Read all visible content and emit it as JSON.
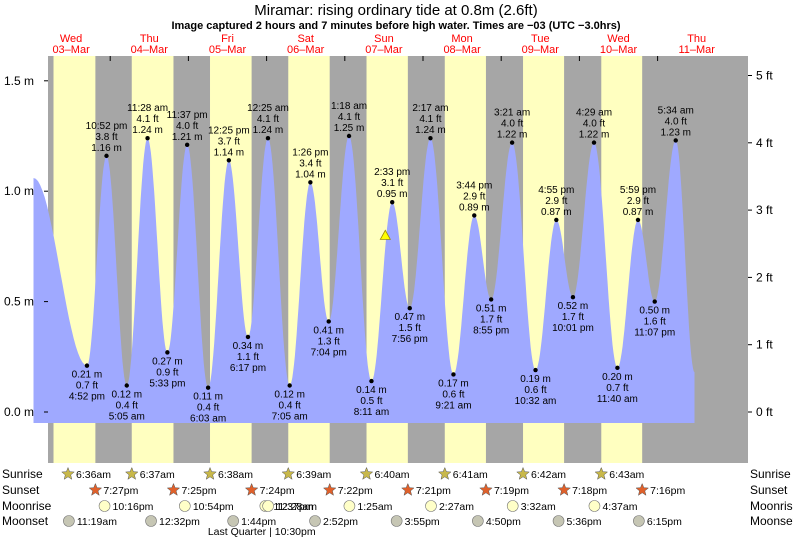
{
  "title": "Miramar: rising  ordinary tide at 0.8m (2.6ft)",
  "subtitle": "Image captured 2 hours and 7 minutes before high water. Times are −03 (UTC −3.0hrs)",
  "colors": {
    "day": "#ffffc0",
    "night": "#a6a6a6",
    "water": "#9fa9ff",
    "day_label": "#ff0000",
    "point": "#000000",
    "now_marker": "#ffff00"
  },
  "chart_data": {
    "type": "area",
    "title": "Miramar: rising  ordinary tide at 0.8m (2.6ft)",
    "xlabel": "",
    "ylabel_left": "m",
    "ylabel_right": "ft",
    "ylim": [
      -0.23,
      1.62
    ],
    "y_ticks_m": [
      "1.5 m",
      "1.0 m",
      "0.5 m",
      "0.0 m"
    ],
    "y_ticks_m_values": [
      1.5,
      1.0,
      0.5,
      0.0
    ],
    "y_ticks_ft": [
      "5 ft",
      "4 ft",
      "3 ft",
      "2 ft",
      "1 ft",
      "0 ft"
    ],
    "y_ticks_ft_values": [
      5,
      4,
      3,
      2,
      1,
      0
    ],
    "x_start": "2021-03-03T00:00",
    "x_end": "2021-03-11T23:59",
    "curve_start": {
      "t": "2021-03-03T00:28",
      "m": 1.06
    },
    "curve_end": {
      "t": "2021-03-11T11:20",
      "m": 0.18
    },
    "days": [
      {
        "day": "Wed",
        "date": "03–Mar",
        "sunrise": "6:36am",
        "sunset": "7:27pm",
        "moonrise": "10:16pm",
        "moonset": "11:19am"
      },
      {
        "day": "Thu",
        "date": "04–Mar",
        "sunrise": "6:37am",
        "sunset": "7:25pm",
        "moonrise": "10:54pm",
        "moonset": "12:32pm"
      },
      {
        "day": "Fri",
        "date": "05–Mar",
        "sunrise": "6:38am",
        "sunset": "7:24pm",
        "moonrise": "11:37pm",
        "moonset": "1:44pm"
      },
      {
        "day": "Sat",
        "date": "06–Mar",
        "sunrise": "6:39am",
        "sunset": "7:22pm",
        "moonrise": "12:28am",
        "moonset": "2:52pm"
      },
      {
        "day": "Sun",
        "date": "07–Mar",
        "sunrise": "6:40am",
        "sunset": "7:21pm",
        "moonrise": "1:25am",
        "moonset": "3:55pm"
      },
      {
        "day": "Mon",
        "date": "08–Mar",
        "sunrise": "6:41am",
        "sunset": "7:19pm",
        "moonrise": "2:27am",
        "moonset": "4:50pm"
      },
      {
        "day": "Tue",
        "date": "09–Mar",
        "sunrise": "6:42am",
        "sunset": "7:18pm",
        "moonrise": "3:32am",
        "moonset": "5:36pm"
      },
      {
        "day": "Wed",
        "date": "10–Mar",
        "sunrise": "6:43am",
        "sunset": "7:16pm",
        "moonrise": "4:37am",
        "moonset": "6:15pm"
      },
      {
        "day": "Thu",
        "date": "11–Mar"
      }
    ],
    "tides": [
      {
        "t": "2021-03-03T16:52",
        "type": "low",
        "time": "4:52 pm",
        "m": 0.21,
        "m_label": "0.21 m",
        "ft_label": "0.7 ft"
      },
      {
        "t": "2021-03-03T22:52",
        "type": "high",
        "time": "10:52 pm",
        "m": 1.16,
        "m_label": "1.16 m",
        "ft_label": "3.8 ft"
      },
      {
        "t": "2021-03-04T05:05",
        "type": "low",
        "time": "5:05 am",
        "m": 0.12,
        "m_label": "0.12 m",
        "ft_label": "0.4 ft"
      },
      {
        "t": "2021-03-04T11:28",
        "type": "high",
        "time": "11:28 am",
        "m": 1.24,
        "m_label": "1.24 m",
        "ft_label": "4.1 ft"
      },
      {
        "t": "2021-03-04T17:33",
        "type": "low",
        "time": "5:33 pm",
        "m": 0.27,
        "m_label": "0.27 m",
        "ft_label": "0.9 ft"
      },
      {
        "t": "2021-03-04T23:37",
        "type": "high",
        "time": "11:37 pm",
        "m": 1.21,
        "m_label": "1.21 m",
        "ft_label": "4.0 ft"
      },
      {
        "t": "2021-03-05T06:03",
        "type": "low",
        "time": "6:03 am",
        "m": 0.11,
        "m_label": "0.11 m",
        "ft_label": "0.4 ft"
      },
      {
        "t": "2021-03-05T12:25",
        "type": "high",
        "time": "12:25 pm",
        "m": 1.14,
        "m_label": "1.14 m",
        "ft_label": "3.7 ft"
      },
      {
        "t": "2021-03-05T18:17",
        "type": "low",
        "time": "6:17 pm",
        "m": 0.34,
        "m_label": "0.34 m",
        "ft_label": "1.1 ft"
      },
      {
        "t": "2021-03-06T00:25",
        "type": "high",
        "time": "12:25 am",
        "m": 1.24,
        "m_label": "1.24 m",
        "ft_label": "4.1 ft"
      },
      {
        "t": "2021-03-06T07:05",
        "type": "low",
        "time": "7:05 am",
        "m": 0.12,
        "m_label": "0.12 m",
        "ft_label": "0.4 ft"
      },
      {
        "t": "2021-03-06T13:26",
        "type": "high",
        "time": "1:26 pm",
        "m": 1.04,
        "m_label": "1.04 m",
        "ft_label": "3.4 ft"
      },
      {
        "t": "2021-03-06T19:04",
        "type": "low",
        "time": "7:04 pm",
        "m": 0.41,
        "m_label": "0.41 m",
        "ft_label": "1.3 ft"
      },
      {
        "t": "2021-03-07T01:18",
        "type": "high",
        "time": "1:18 am",
        "m": 1.25,
        "m_label": "1.25 m",
        "ft_label": "4.1 ft"
      },
      {
        "t": "2021-03-07T08:11",
        "type": "low",
        "time": "8:11 am",
        "m": 0.14,
        "m_label": "0.14 m",
        "ft_label": "0.5 ft"
      },
      {
        "t": "2021-03-07T14:33",
        "type": "high",
        "time": "2:33 pm",
        "m": 0.95,
        "m_label": "0.95 m",
        "ft_label": "3.1 ft"
      },
      {
        "t": "2021-03-07T19:56",
        "type": "low",
        "time": "7:56 pm",
        "m": 0.47,
        "m_label": "0.47 m",
        "ft_label": "1.5 ft"
      },
      {
        "t": "2021-03-08T02:17",
        "type": "high",
        "time": "2:17 am",
        "m": 1.24,
        "m_label": "1.24 m",
        "ft_label": "4.1 ft"
      },
      {
        "t": "2021-03-08T09:21",
        "type": "low",
        "time": "9:21 am",
        "m": 0.17,
        "m_label": "0.17 m",
        "ft_label": "0.6 ft"
      },
      {
        "t": "2021-03-08T15:44",
        "type": "high",
        "time": "3:44 pm",
        "m": 0.89,
        "m_label": "0.89 m",
        "ft_label": "2.9 ft"
      },
      {
        "t": "2021-03-08T20:55",
        "type": "low",
        "time": "8:55 pm",
        "m": 0.51,
        "m_label": "0.51 m",
        "ft_label": "1.7 ft"
      },
      {
        "t": "2021-03-09T03:21",
        "type": "high",
        "time": "3:21 am",
        "m": 1.22,
        "m_label": "1.22 m",
        "ft_label": "4.0 ft"
      },
      {
        "t": "2021-03-09T10:32",
        "type": "low",
        "time": "10:32 am",
        "m": 0.19,
        "m_label": "0.19 m",
        "ft_label": "0.6 ft"
      },
      {
        "t": "2021-03-09T16:55",
        "type": "high",
        "time": "4:55 pm",
        "m": 0.87,
        "m_label": "0.87 m",
        "ft_label": "2.9 ft"
      },
      {
        "t": "2021-03-09T22:01",
        "type": "low",
        "time": "10:01 pm",
        "m": 0.52,
        "m_label": "0.52 m",
        "ft_label": "1.7 ft"
      },
      {
        "t": "2021-03-10T04:29",
        "type": "high",
        "time": "4:29 am",
        "m": 1.22,
        "m_label": "1.22 m",
        "ft_label": "4.0 ft"
      },
      {
        "t": "2021-03-10T11:40",
        "type": "low",
        "time": "11:40 am",
        "m": 0.2,
        "m_label": "0.20 m",
        "ft_label": "0.7 ft"
      },
      {
        "t": "2021-03-10T17:59",
        "type": "high",
        "time": "5:59 pm",
        "m": 0.87,
        "m_label": "0.87 m",
        "ft_label": "2.9 ft"
      },
      {
        "t": "2021-03-10T23:07",
        "type": "low",
        "time": "11:07 pm",
        "m": 0.5,
        "m_label": "0.50 m",
        "ft_label": "1.6 ft"
      },
      {
        "t": "2021-03-11T05:34",
        "type": "high",
        "time": "5:34 am",
        "m": 1.23,
        "m_label": "1.23 m",
        "ft_label": "4.0 ft"
      }
    ],
    "now_marker": {
      "t": "2021-03-07T12:26",
      "m": 0.8
    },
    "moon_phase": {
      "t": "2021-03-05T22:30",
      "label": "Last Quarter | 10:30pm"
    },
    "row_labels": {
      "sunrise": "Sunrise",
      "sunset": "Sunset",
      "moonrise": "Moonrise",
      "moonset": "Moonset"
    }
  }
}
